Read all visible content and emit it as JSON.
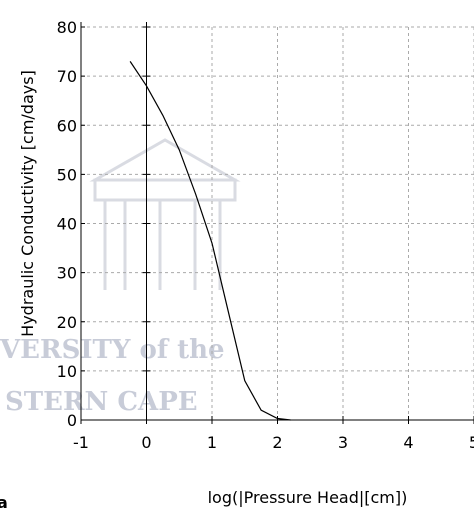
{
  "chart_data": {
    "type": "line",
    "panel_label": "a",
    "x_label": "log(|Pressure Head|[cm])",
    "y_label": "Hydraulic Conductivity [cm/days]",
    "watermark": [
      "VERSITY of the",
      "STERN CAPE"
    ],
    "x": [
      -0.25,
      0,
      0.25,
      0.5,
      0.75,
      1,
      1.25,
      1.5,
      1.75,
      2,
      2.2
    ],
    "series": [
      {
        "color": "#000000",
        "values": [
          73,
          68,
          62,
          55,
          46,
          36,
          22,
          8,
          2,
          0.3,
          0
        ]
      }
    ],
    "xlim": [
      -1,
      5
    ],
    "xticks": [
      -1,
      0,
      1,
      2,
      3,
      4,
      5
    ],
    "ylim": [
      0,
      80
    ],
    "yticks": [
      0,
      10,
      20,
      30,
      40,
      50,
      60,
      70,
      80
    ],
    "grid": true
  }
}
